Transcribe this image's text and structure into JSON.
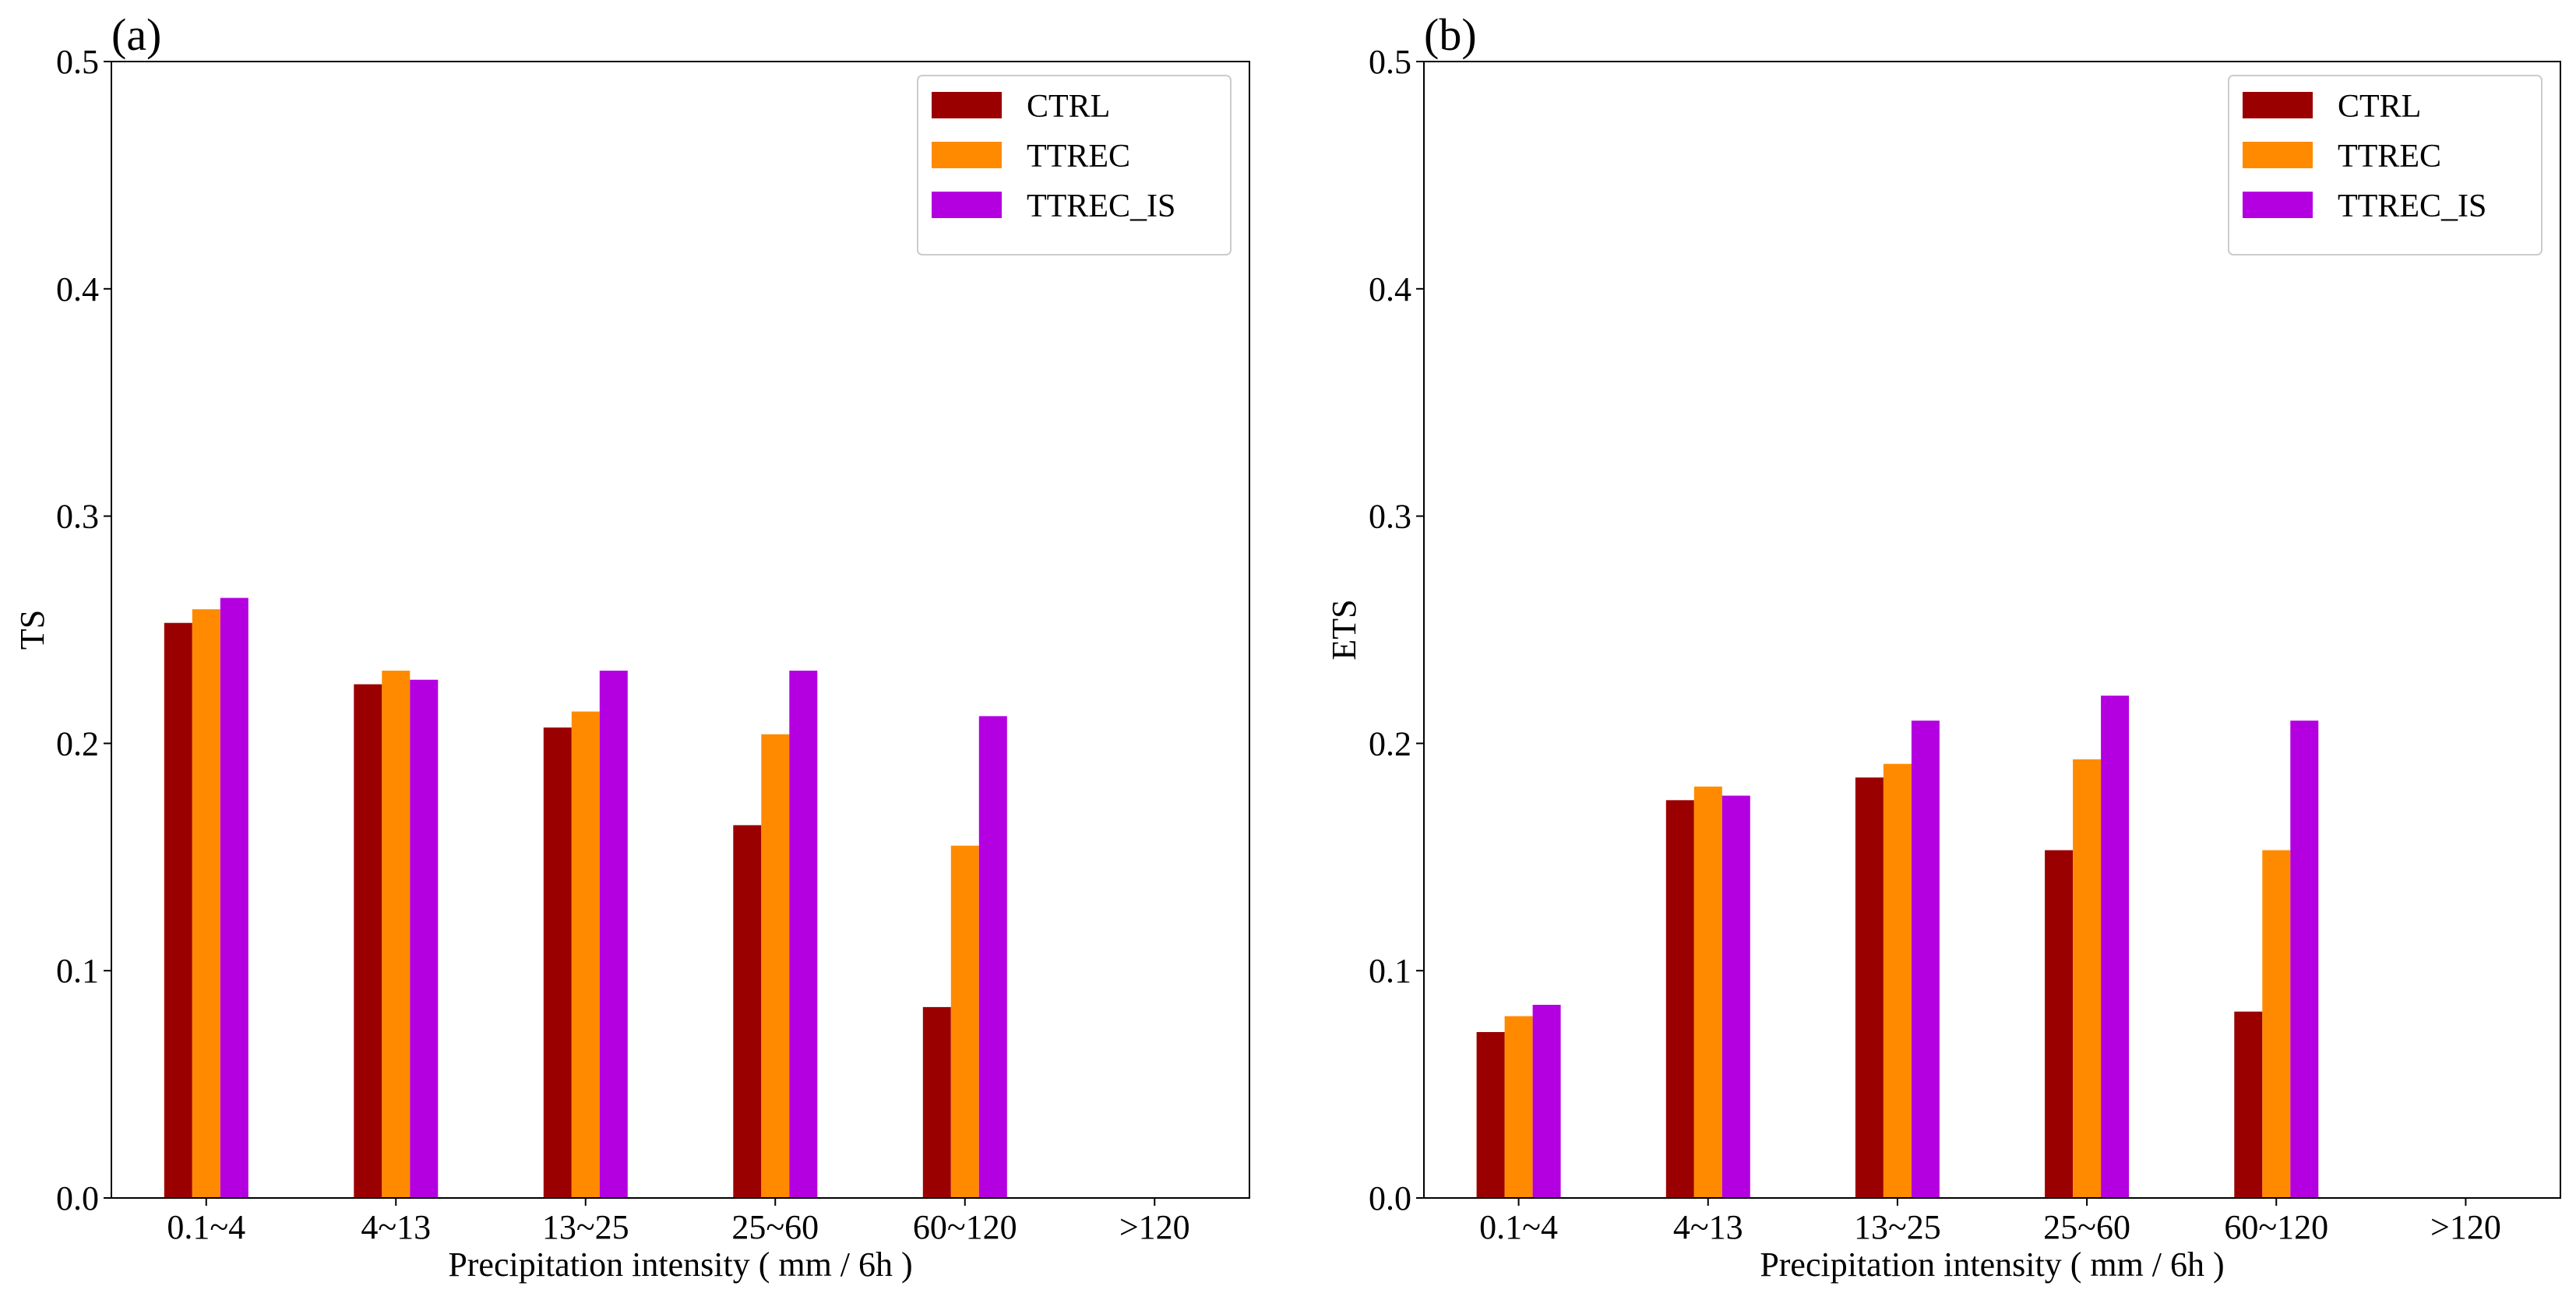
{
  "chart_data": [
    {
      "type": "bar",
      "panel_label": "(a)",
      "ylabel": "TS",
      "xlabel": "Precipitation intensity ( mm / 6h )",
      "categories": [
        "0.1~4",
        "4~13",
        "13~25",
        "25~60",
        "60~120",
        ">120"
      ],
      "ylim": [
        0,
        0.5
      ],
      "yticks": [
        "0.0",
        "0.1",
        "0.2",
        "0.3",
        "0.4",
        "0.5"
      ],
      "legend_position": "top-right",
      "series": [
        {
          "name": "CTRL",
          "color": "#9b0000",
          "values": [
            0.253,
            0.226,
            0.207,
            0.164,
            0.084,
            0
          ]
        },
        {
          "name": "TTREC",
          "color": "#ff8a00",
          "values": [
            0.259,
            0.232,
            0.214,
            0.204,
            0.155,
            0
          ]
        },
        {
          "name": "TTREC_IS",
          "color": "#b400e0",
          "values": [
            0.264,
            0.228,
            0.232,
            0.232,
            0.212,
            0
          ]
        }
      ]
    },
    {
      "type": "bar",
      "panel_label": "(b)",
      "ylabel": "ETS",
      "xlabel": "Precipitation intensity ( mm / 6h )",
      "categories": [
        "0.1~4",
        "4~13",
        "13~25",
        "25~60",
        "60~120",
        ">120"
      ],
      "ylim": [
        0,
        0.5
      ],
      "yticks": [
        "0.0",
        "0.1",
        "0.2",
        "0.3",
        "0.4",
        "0.5"
      ],
      "legend_position": "top-right",
      "series": [
        {
          "name": "CTRL",
          "color": "#9b0000",
          "values": [
            0.073,
            0.175,
            0.185,
            0.153,
            0.082,
            0
          ]
        },
        {
          "name": "TTREC",
          "color": "#ff8a00",
          "values": [
            0.08,
            0.181,
            0.191,
            0.193,
            0.153,
            0
          ]
        },
        {
          "name": "TTREC_IS",
          "color": "#b400e0",
          "values": [
            0.085,
            0.177,
            0.21,
            0.221,
            0.21,
            0
          ]
        }
      ]
    }
  ]
}
